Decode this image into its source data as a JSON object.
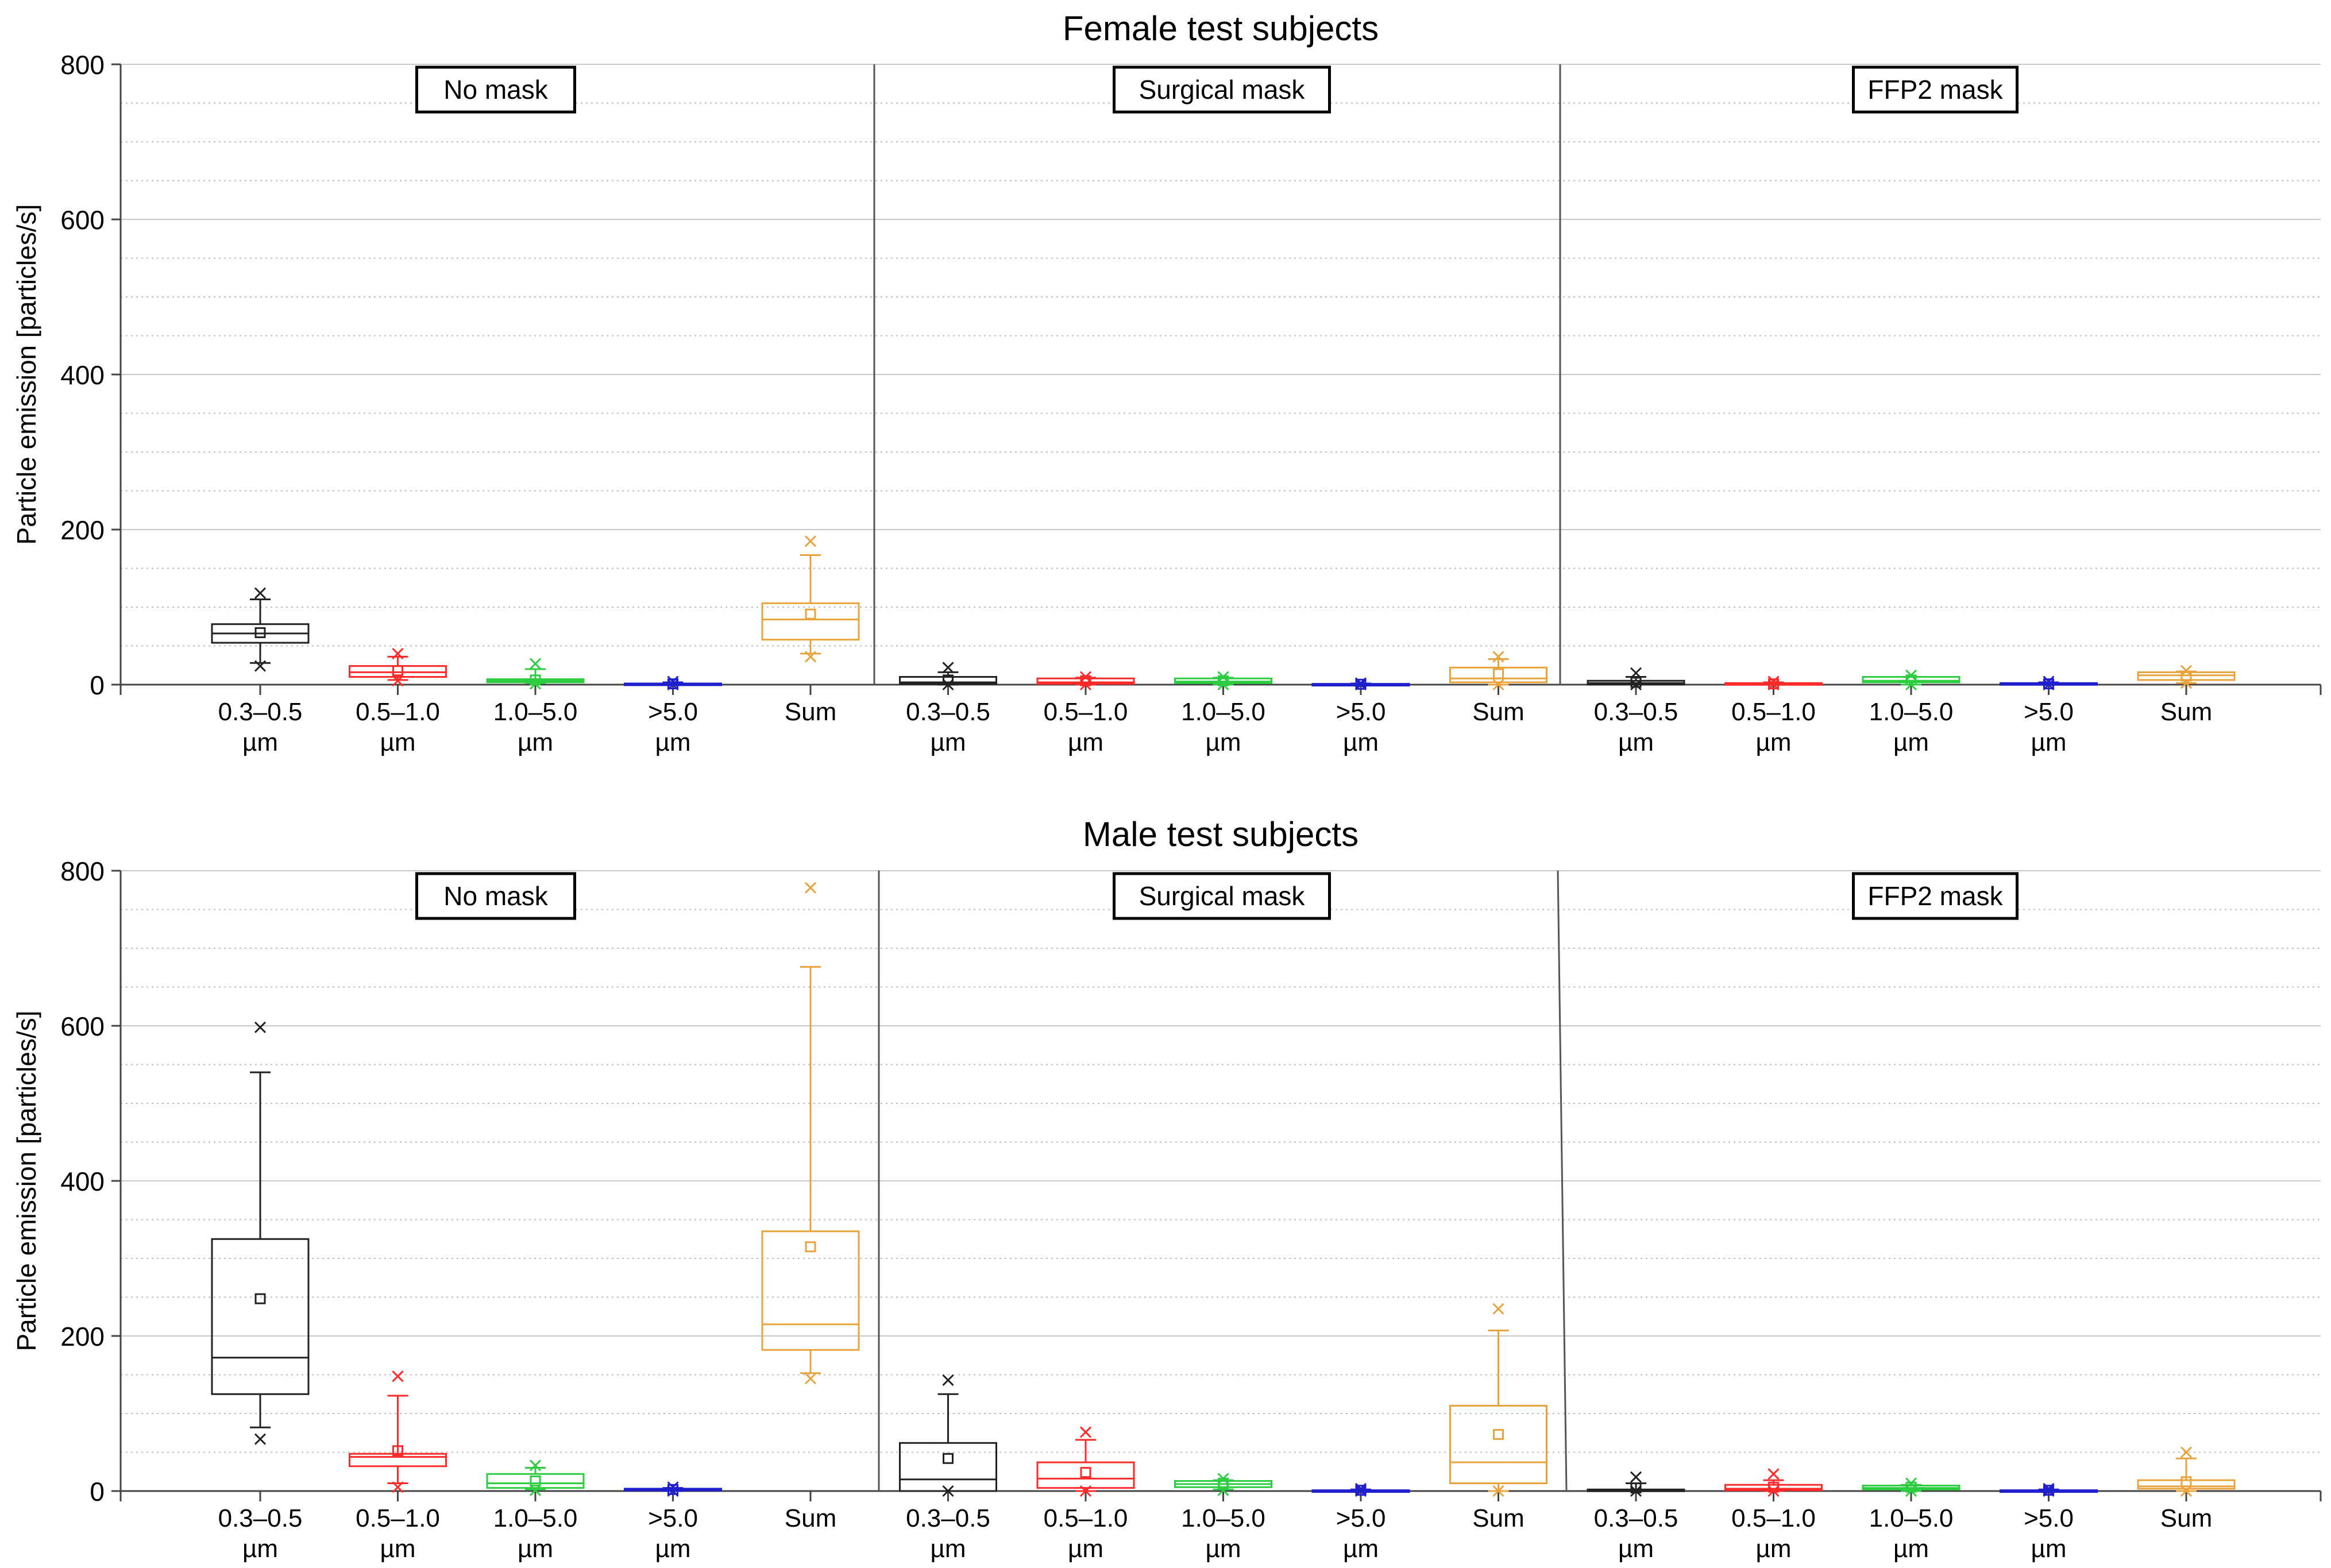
{
  "chart_data": [
    {
      "type": "box",
      "title": "Female test subjects",
      "ylabel": "Particle emission [particles/s]",
      "xlabel": "",
      "ylim": [
        0,
        800
      ],
      "yticks": [
        0,
        200,
        400,
        600,
        800
      ],
      "grid": true,
      "groups": [
        "No mask",
        "Surgical mask",
        "FFP2 mask"
      ],
      "categories": [
        [
          "0.3–0.5",
          "µm"
        ],
        [
          "0.5–1.0",
          "µm"
        ],
        [
          "1.0–5.0",
          "µm"
        ],
        [
          ">5.0",
          "µm"
        ],
        [
          "Sum",
          ""
        ]
      ],
      "series": [
        {
          "group": "No mask",
          "boxes": [
            {
              "category": "0.3–0.5 µm",
              "color": "#222222",
              "whisker_low": 28,
              "q1": 54,
              "median": 66,
              "q3": 78,
              "whisker_high": 110,
              "mean": 67,
              "min": 24,
              "max": 118
            },
            {
              "category": "0.5–1.0 µm",
              "color": "#ff2a2a",
              "whisker_low": 6,
              "q1": 10,
              "median": 16,
              "q3": 24,
              "whisker_high": 36,
              "mean": 18,
              "min": 5,
              "max": 40
            },
            {
              "category": "1.0–5.0 µm",
              "color": "#2ecc40",
              "whisker_low": 2,
              "q1": 3,
              "median": 5,
              "q3": 7,
              "whisker_high": 20,
              "mean": 6,
              "min": 1,
              "max": 27
            },
            {
              "category": ">5.0 µm",
              "color": "#1f1fcc",
              "whisker_low": 0,
              "q1": 0.5,
              "median": 1,
              "q3": 1.5,
              "whisker_high": 3,
              "mean": 1,
              "min": 0,
              "max": 4
            },
            {
              "category": "Sum",
              "color": "#e8a33c",
              "whisker_low": 40,
              "q1": 58,
              "median": 84,
              "q3": 105,
              "whisker_high": 167,
              "mean": 91,
              "min": 36,
              "max": 185
            }
          ]
        },
        {
          "group": "Surgical mask",
          "boxes": [
            {
              "category": "0.3–0.5 µm",
              "color": "#222222",
              "whisker_low": 0,
              "q1": 1,
              "median": 3,
              "q3": 10,
              "whisker_high": 16,
              "mean": 6,
              "min": 0,
              "max": 22
            },
            {
              "category": "0.5–1.0 µm",
              "color": "#ff2a2a",
              "whisker_low": 0,
              "q1": 1,
              "median": 3,
              "q3": 8,
              "whisker_high": 9,
              "mean": 5,
              "min": 0,
              "max": 10
            },
            {
              "category": "1.0–5.0 µm",
              "color": "#2ecc40",
              "whisker_low": 0,
              "q1": 2,
              "median": 4,
              "q3": 8,
              "whisker_high": 9,
              "mean": 5,
              "min": 0,
              "max": 10
            },
            {
              "category": ">5.0 µm",
              "color": "#1f1fcc",
              "whisker_low": 0,
              "q1": 0,
              "median": 0.5,
              "q3": 1,
              "whisker_high": 1.5,
              "mean": 0.5,
              "min": 0,
              "max": 2
            },
            {
              "category": "Sum",
              "color": "#e8a33c",
              "whisker_low": 0,
              "q1": 3,
              "median": 8,
              "q3": 22,
              "whisker_high": 33,
              "mean": 14,
              "min": 0,
              "max": 36
            }
          ]
        },
        {
          "group": "FFP2 mask",
          "boxes": [
            {
              "category": "0.3–0.5 µm",
              "color": "#222222",
              "whisker_low": 0,
              "q1": 0,
              "median": 2,
              "q3": 5,
              "whisker_high": 10,
              "mean": 3,
              "min": 0,
              "max": 15
            },
            {
              "category": "0.5–1.0 µm",
              "color": "#ff2a2a",
              "whisker_low": 0,
              "q1": 0,
              "median": 1,
              "q3": 2,
              "whisker_high": 3,
              "mean": 1,
              "min": 0,
              "max": 4
            },
            {
              "category": "1.0–5.0 µm",
              "color": "#2ecc40",
              "whisker_low": 0,
              "q1": 3,
              "median": 5,
              "q3": 10,
              "whisker_high": 10,
              "mean": 6,
              "min": 0,
              "max": 12
            },
            {
              "category": ">5.0 µm",
              "color": "#1f1fcc",
              "whisker_low": 0,
              "q1": 0.5,
              "median": 1,
              "q3": 2,
              "whisker_high": 3,
              "mean": 1,
              "min": 0,
              "max": 4
            },
            {
              "category": "Sum",
              "color": "#e8a33c",
              "whisker_low": 2,
              "q1": 6,
              "median": 12,
              "q3": 16,
              "whisker_high": 17,
              "mean": 11,
              "min": 2,
              "max": 18
            }
          ]
        }
      ]
    },
    {
      "type": "box",
      "title": "Male test subjects",
      "ylabel": "Particle emission [particles/s]",
      "xlabel": "",
      "ylim": [
        0,
        800
      ],
      "yticks": [
        0,
        200,
        400,
        600,
        800
      ],
      "grid": true,
      "groups": [
        "No mask",
        "Surgical mask",
        "FFP2 mask"
      ],
      "categories": [
        [
          "0.3–0.5",
          "µm"
        ],
        [
          "0.5–1.0",
          "µm"
        ],
        [
          "1.0–5.0",
          "µm"
        ],
        [
          ">5.0",
          "µm"
        ],
        [
          "Sum",
          ""
        ]
      ],
      "series": [
        {
          "group": "No mask",
          "boxes": [
            {
              "category": "0.3–0.5 µm",
              "color": "#222222",
              "whisker_low": 82,
              "q1": 125,
              "median": 172,
              "q3": 325,
              "whisker_high": 540,
              "mean": 248,
              "min": 67,
              "max": 598
            },
            {
              "category": "0.5–1.0 µm",
              "color": "#ff2a2a",
              "whisker_low": 10,
              "q1": 32,
              "median": 44,
              "q3": 48,
              "whisker_high": 123,
              "mean": 52,
              "min": 5,
              "max": 148
            },
            {
              "category": "1.0–5.0 µm",
              "color": "#2ecc40",
              "whisker_low": 2,
              "q1": 4,
              "median": 10,
              "q3": 22,
              "whisker_high": 30,
              "mean": 13,
              "min": 1,
              "max": 33
            },
            {
              "category": ">5.0 µm",
              "color": "#1f1fcc",
              "whisker_low": 0,
              "q1": 1,
              "median": 2,
              "q3": 3,
              "whisker_high": 4,
              "mean": 2,
              "min": 0,
              "max": 5
            },
            {
              "category": "Sum",
              "color": "#e8a33c",
              "whisker_low": 152,
              "q1": 182,
              "median": 215,
              "q3": 335,
              "whisker_high": 676,
              "mean": 315,
              "min": 145,
              "max": 778
            }
          ]
        },
        {
          "group": "Surgical mask",
          "boxes": [
            {
              "category": "0.3–0.5 µm",
              "color": "#222222",
              "whisker_low": 0,
              "q1": 0,
              "median": 15,
              "q3": 62,
              "whisker_high": 125,
              "mean": 42,
              "min": 0,
              "max": 143
            },
            {
              "category": "0.5–1.0 µm",
              "color": "#ff2a2a",
              "whisker_low": 0,
              "q1": 4,
              "median": 16,
              "q3": 37,
              "whisker_high": 66,
              "mean": 24,
              "min": 0,
              "max": 76
            },
            {
              "category": "1.0–5.0 µm",
              "color": "#2ecc40",
              "whisker_low": 2,
              "q1": 5,
              "median": 9,
              "q3": 13,
              "whisker_high": 14,
              "mean": 10,
              "min": 1,
              "max": 16
            },
            {
              "category": ">5.0 µm",
              "color": "#1f1fcc",
              "whisker_low": 0,
              "q1": 0,
              "median": 0.5,
              "q3": 1,
              "whisker_high": 2,
              "mean": 1,
              "min": 0,
              "max": 3
            },
            {
              "category": "Sum",
              "color": "#e8a33c",
              "whisker_low": 0,
              "q1": 10,
              "median": 37,
              "q3": 110,
              "whisker_high": 207,
              "mean": 73,
              "min": 0,
              "max": 235
            }
          ]
        },
        {
          "group": "FFP2 mask",
          "boxes": [
            {
              "category": "0.3–0.5 µm",
              "color": "#222222",
              "whisker_low": 0,
              "q1": 0,
              "median": 1,
              "q3": 2,
              "whisker_high": 10,
              "mean": 4,
              "min": 0,
              "max": 18
            },
            {
              "category": "0.5–1.0 µm",
              "color": "#ff2a2a",
              "whisker_low": 0,
              "q1": 1,
              "median": 3,
              "q3": 8,
              "whisker_high": 14,
              "mean": 5,
              "min": 0,
              "max": 22
            },
            {
              "category": "1.0–5.0 µm",
              "color": "#2ecc40",
              "whisker_low": 0,
              "q1": 2,
              "median": 4,
              "q3": 7,
              "whisker_high": 8,
              "mean": 5,
              "min": 0,
              "max": 10
            },
            {
              "category": ">5.0 µm",
              "color": "#1f1fcc",
              "whisker_low": 0,
              "q1": 0,
              "median": 0.5,
              "q3": 1,
              "whisker_high": 2,
              "mean": 1,
              "min": 0,
              "max": 3
            },
            {
              "category": "Sum",
              "color": "#e8a33c",
              "whisker_low": 0,
              "q1": 3,
              "median": 6,
              "q3": 14,
              "whisker_high": 42,
              "mean": 12,
              "min": 0,
              "max": 50
            }
          ]
        }
      ]
    }
  ]
}
